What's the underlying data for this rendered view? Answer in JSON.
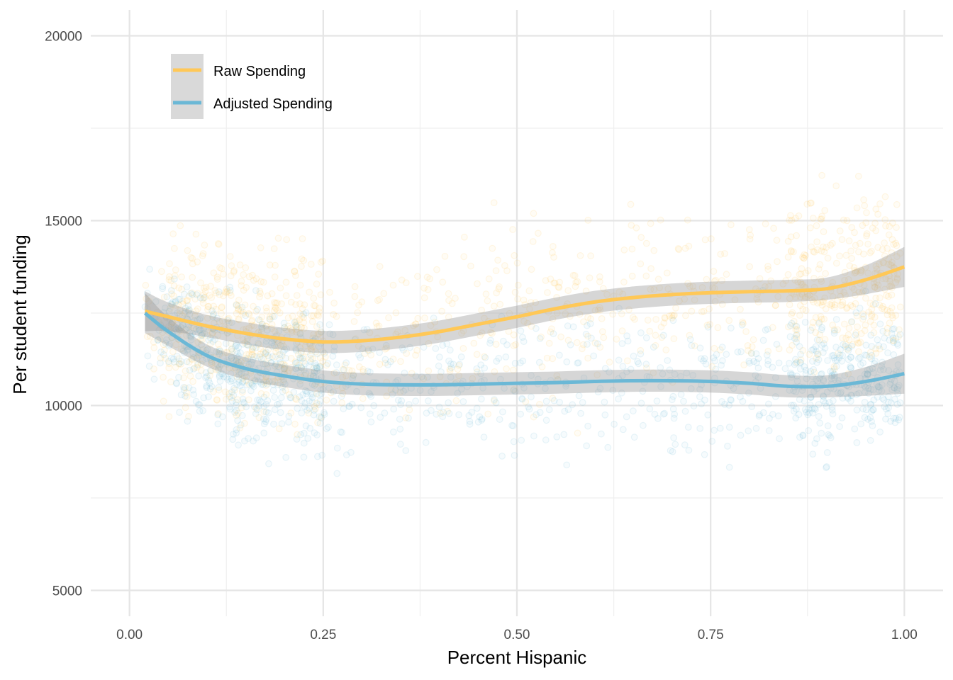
{
  "chart_data": {
    "type": "scatter",
    "title": "",
    "xlabel": "Percent Hispanic",
    "ylabel": "Per student funding",
    "xlim": [
      -0.05,
      1.05
    ],
    "ylim": [
      4300,
      20700
    ],
    "x_ticks": [
      0.0,
      0.25,
      0.5,
      0.75,
      1.0
    ],
    "x_tick_labels": [
      "0.00",
      "0.25",
      "0.50",
      "0.75",
      "1.00"
    ],
    "y_ticks": [
      5000,
      10000,
      15000,
      20000
    ],
    "y_tick_labels": [
      "5000",
      "10000",
      "15000",
      "20000"
    ],
    "grid": true,
    "legend_position": "top-left",
    "series": [
      {
        "name": "Raw Spending",
        "color": "#FFC857",
        "smooth_x": [
          0.02,
          0.05,
          0.1,
          0.15,
          0.2,
          0.25,
          0.3,
          0.35,
          0.4,
          0.45,
          0.5,
          0.55,
          0.6,
          0.65,
          0.7,
          0.75,
          0.8,
          0.85,
          0.9,
          0.95,
          1.0
        ],
        "smooth_y": [
          12550,
          12400,
          12150,
          11950,
          11800,
          11720,
          11750,
          11850,
          12000,
          12200,
          12400,
          12620,
          12800,
          12920,
          13000,
          13050,
          13080,
          13100,
          13160,
          13400,
          13750
        ],
        "band": 300,
        "points_y_center": 12900,
        "points_y_spread": 2600
      },
      {
        "name": "Adjusted Spending",
        "color": "#6BB8D6",
        "smooth_x": [
          0.02,
          0.05,
          0.1,
          0.15,
          0.2,
          0.25,
          0.3,
          0.35,
          0.4,
          0.45,
          0.5,
          0.55,
          0.6,
          0.65,
          0.7,
          0.75,
          0.8,
          0.85,
          0.9,
          0.95,
          1.0
        ],
        "smooth_y": [
          12500,
          12000,
          11350,
          11000,
          10800,
          10650,
          10580,
          10560,
          10560,
          10580,
          10600,
          10620,
          10650,
          10670,
          10670,
          10650,
          10600,
          10520,
          10520,
          10650,
          10860
        ],
        "band": 300,
        "points_y_center": 10500,
        "points_y_spread": 2100
      }
    ]
  }
}
